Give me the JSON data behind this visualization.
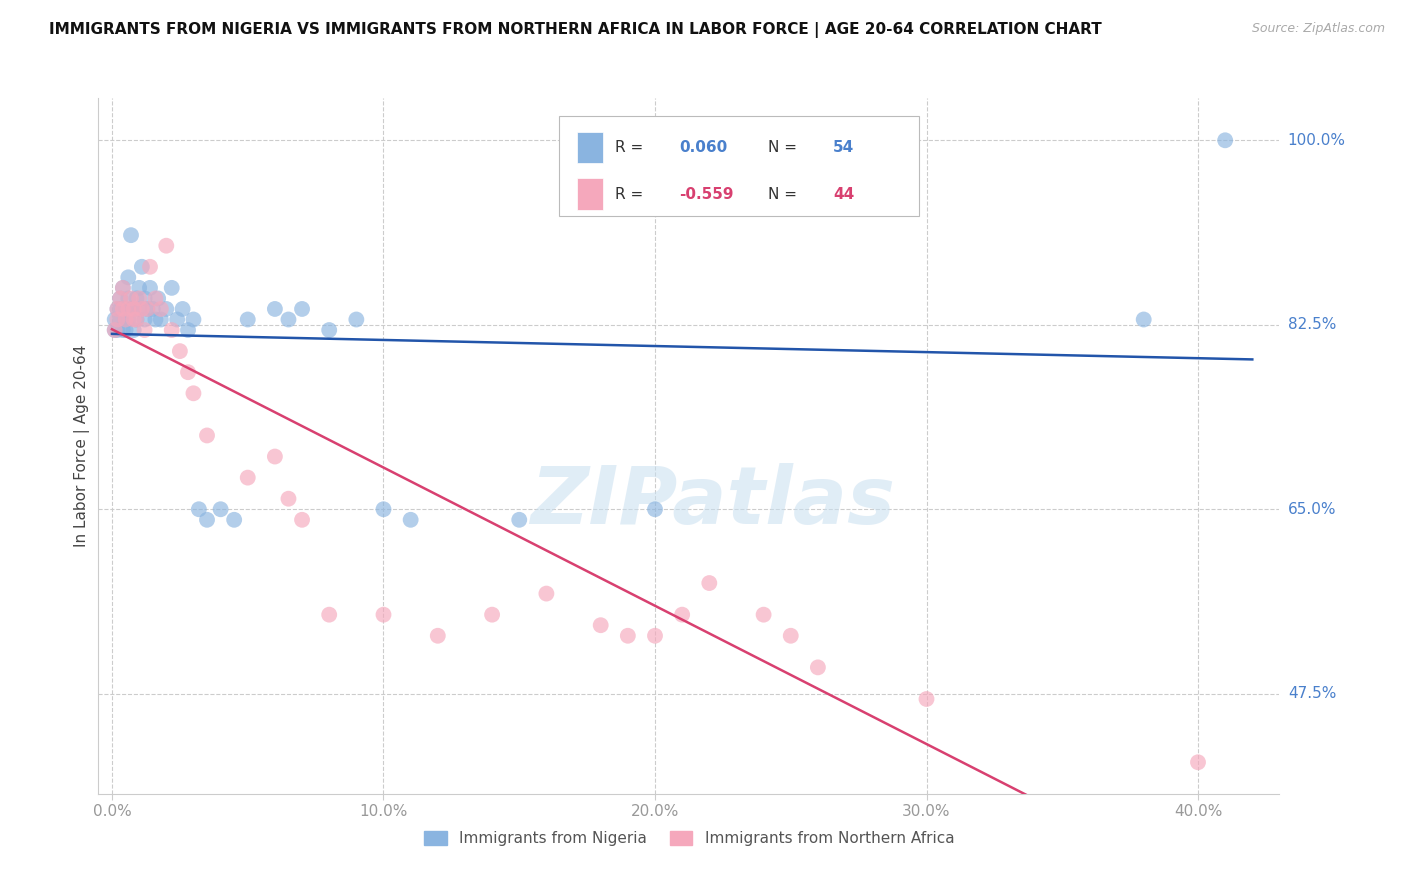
{
  "title": "IMMIGRANTS FROM NIGERIA VS IMMIGRANTS FROM NORTHERN AFRICA IN LABOR FORCE | AGE 20-64 CORRELATION CHART",
  "source": "Source: ZipAtlas.com",
  "ylabel": "In Labor Force | Age 20-64",
  "legend_nigeria": "Immigrants from Nigeria",
  "legend_n_africa": "Immigrants from Northern Africa",
  "R_nigeria": 0.06,
  "N_nigeria": 54,
  "R_n_africa": -0.559,
  "N_n_africa": 44,
  "ytick_right": [
    1.0,
    0.825,
    0.65,
    0.475
  ],
  "ytick_right_labels": [
    "100.0%",
    "82.5%",
    "65.0%",
    "47.5%"
  ],
  "xtick_values": [
    0.0,
    0.1,
    0.2,
    0.3,
    0.4
  ],
  "xtick_labels": [
    "0.0%",
    "10.0%",
    "20.0%",
    "30.0%",
    "40.0%"
  ],
  "xlim": [
    -0.005,
    0.43
  ],
  "ylim": [
    0.38,
    1.04
  ],
  "color_nigeria": "#8ab4e0",
  "color_n_africa": "#f5a8bc",
  "color_line_nigeria": "#2255aa",
  "color_line_n_africa": "#d84070",
  "color_right_labels": "#4a80cc",
  "background": "#ffffff",
  "watermark": "ZIPatlas",
  "nigeria_x": [
    0.001,
    0.001,
    0.002,
    0.002,
    0.003,
    0.003,
    0.003,
    0.004,
    0.004,
    0.005,
    0.005,
    0.005,
    0.006,
    0.006,
    0.006,
    0.007,
    0.007,
    0.008,
    0.008,
    0.009,
    0.009,
    0.01,
    0.01,
    0.011,
    0.012,
    0.012,
    0.013,
    0.014,
    0.015,
    0.016,
    0.017,
    0.018,
    0.02,
    0.022,
    0.024,
    0.026,
    0.028,
    0.03,
    0.032,
    0.035,
    0.04,
    0.045,
    0.05,
    0.06,
    0.065,
    0.07,
    0.08,
    0.09,
    0.1,
    0.11,
    0.15,
    0.2,
    0.38,
    0.41
  ],
  "nigeria_y": [
    0.82,
    0.83,
    0.84,
    0.82,
    0.85,
    0.83,
    0.84,
    0.82,
    0.86,
    0.83,
    0.82,
    0.84,
    0.83,
    0.85,
    0.87,
    0.84,
    0.91,
    0.82,
    0.84,
    0.83,
    0.85,
    0.84,
    0.86,
    0.88,
    0.83,
    0.85,
    0.84,
    0.86,
    0.84,
    0.83,
    0.85,
    0.83,
    0.84,
    0.86,
    0.83,
    0.84,
    0.82,
    0.83,
    0.65,
    0.64,
    0.65,
    0.64,
    0.83,
    0.84,
    0.83,
    0.84,
    0.82,
    0.83,
    0.65,
    0.64,
    0.64,
    0.65,
    0.83,
    1.0
  ],
  "n_africa_x": [
    0.001,
    0.002,
    0.002,
    0.003,
    0.004,
    0.004,
    0.005,
    0.006,
    0.007,
    0.008,
    0.008,
    0.009,
    0.01,
    0.011,
    0.012,
    0.013,
    0.014,
    0.016,
    0.018,
    0.02,
    0.022,
    0.025,
    0.028,
    0.03,
    0.035,
    0.05,
    0.06,
    0.065,
    0.07,
    0.08,
    0.1,
    0.12,
    0.14,
    0.16,
    0.18,
    0.19,
    0.2,
    0.21,
    0.22,
    0.24,
    0.25,
    0.26,
    0.3,
    0.4
  ],
  "n_africa_y": [
    0.82,
    0.84,
    0.83,
    0.85,
    0.84,
    0.86,
    0.83,
    0.84,
    0.85,
    0.83,
    0.84,
    0.83,
    0.85,
    0.84,
    0.82,
    0.84,
    0.88,
    0.85,
    0.84,
    0.9,
    0.82,
    0.8,
    0.78,
    0.76,
    0.72,
    0.68,
    0.7,
    0.66,
    0.64,
    0.55,
    0.55,
    0.53,
    0.55,
    0.57,
    0.54,
    0.53,
    0.53,
    0.55,
    0.58,
    0.55,
    0.53,
    0.5,
    0.47,
    0.41
  ]
}
